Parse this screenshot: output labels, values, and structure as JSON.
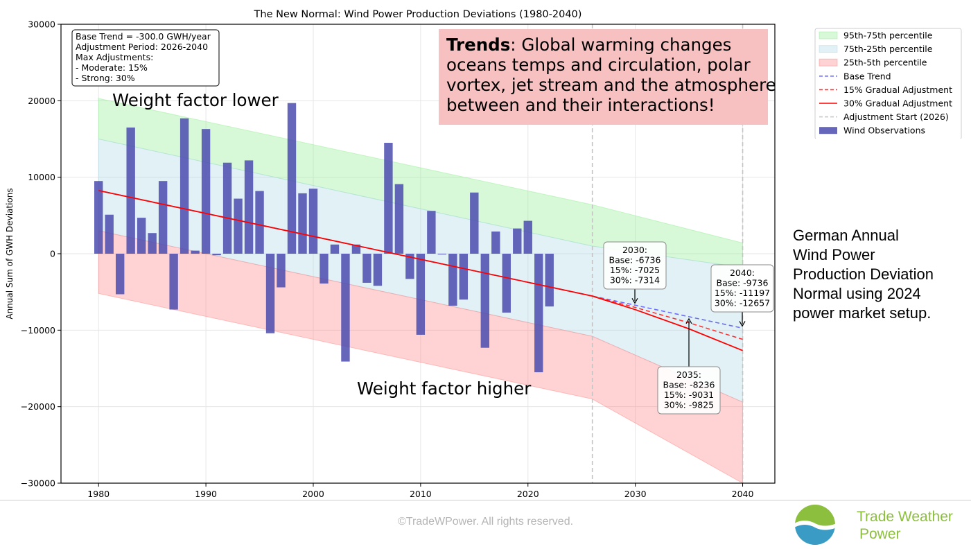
{
  "chart_data": {
    "type": "bar",
    "title": "The New Normal: Wind Power Production Deviations (1980-2040)",
    "xlabel": "",
    "ylabel": "Annual Sum of GWH Deviations",
    "xlim": [
      1976.5,
      2043
    ],
    "ylim": [
      -30000,
      30000
    ],
    "x_ticks": [
      1980,
      1990,
      2000,
      2010,
      2020,
      2030,
      2040
    ],
    "y_ticks": [
      -30000,
      -20000,
      -10000,
      0,
      10000,
      20000,
      30000
    ],
    "x_tick_labels": [
      "1980",
      "1990",
      "2000",
      "2010",
      "2020",
      "2030",
      "2040"
    ],
    "y_tick_labels": [
      "−30000",
      "−20000",
      "−10000",
      "0",
      "10000",
      "20000",
      "30000"
    ],
    "grid": true,
    "legend_position": "outside-right",
    "legend": [
      {
        "label": "95th-75th percentile",
        "kind": "fill",
        "color": "#90ee90"
      },
      {
        "label": "75th-25th percentile",
        "kind": "fill",
        "color": "#add8e6"
      },
      {
        "label": "25th-5th percentile",
        "kind": "fill",
        "color": "#ff8080"
      },
      {
        "label": "Base Trend",
        "kind": "dash",
        "color": "#6b6bff"
      },
      {
        "label": "15% Gradual Adjustment",
        "kind": "dash",
        "color": "#ff3030"
      },
      {
        "label": "30% Gradual Adjustment",
        "kind": "line",
        "color": "#ff0000"
      },
      {
        "label": "Adjustment Start (2026)",
        "kind": "dash",
        "color": "#c8c8c8"
      },
      {
        "label": "Wind Observations",
        "kind": "bar",
        "color": "#4b4baf"
      }
    ],
    "bar_series": {
      "name": "Wind Observations",
      "x": [
        1980,
        1981,
        1982,
        1983,
        1984,
        1985,
        1986,
        1987,
        1988,
        1989,
        1990,
        1991,
        1992,
        1993,
        1994,
        1995,
        1996,
        1997,
        1998,
        1999,
        2000,
        2001,
        2002,
        2003,
        2004,
        2005,
        2006,
        2007,
        2008,
        2009,
        2010,
        2011,
        2012,
        2013,
        2014,
        2015,
        2016,
        2017,
        2018,
        2019,
        2020,
        2021,
        2022
      ],
      "values": [
        9500,
        5100,
        -5300,
        16500,
        4700,
        2700,
        9500,
        -7300,
        17700,
        400,
        16300,
        -200,
        11900,
        7200,
        12200,
        8200,
        -10400,
        -4400,
        19700,
        7900,
        8500,
        -3900,
        1200,
        -14100,
        1200,
        -3800,
        -4200,
        14500,
        9100,
        -3300,
        -10600,
        5600,
        -100,
        -6800,
        -6000,
        8000,
        -12300,
        2900,
        -7700,
        3300,
        4300,
        -15500,
        -6900
      ]
    },
    "lines": [
      {
        "name": "Base Trend",
        "x": [
          1980,
          2026,
          2030,
          2035,
          2040
        ],
        "y": [
          8264,
          -5536,
          -6736,
          -8236,
          -9736
        ]
      },
      {
        "name": "15% Gradual Adjustment",
        "x": [
          2026,
          2030,
          2035,
          2040
        ],
        "y": [
          -5536,
          -7025,
          -9031,
          -11197
        ]
      },
      {
        "name": "30% Gradual Adjustment",
        "x": [
          1980,
          2026,
          2030,
          2035,
          2040
        ],
        "y": [
          8264,
          -5536,
          -7314,
          -9825,
          -12657
        ]
      }
    ],
    "percentile_bands": {
      "x": [
        1980,
        2026,
        2040
      ],
      "p95": [
        20300,
        6400,
        1400
      ],
      "p75": [
        15000,
        1000,
        -1800
      ],
      "p25": [
        3000,
        -10800,
        -19400
      ],
      "p5": [
        -5200,
        -19000,
        -30000
      ]
    },
    "vlines": [
      2026,
      2040
    ],
    "info_box": [
      "Base Trend = -300.0 GWH/year",
      "Adjustment Period: 2026-2040",
      "Max Adjustments:",
      "- Moderate: 15%",
      "- Strong: 30%"
    ],
    "trends_box": {
      "bold": "Trends",
      "lines": [
        ": Global warming changes",
        "oceans temps and circulation, polar",
        "vortex, jet stream and the atmosphere",
        "between and their interactions!"
      ]
    },
    "annotations": [
      {
        "year": 2030,
        "lines": [
          "2030:",
          "Base: -6736",
          "15%: -7025",
          "30%: -7314"
        ]
      },
      {
        "year": 2035,
        "lines": [
          "2035:",
          "Base: -8236",
          "15%: -9031",
          "30%: -9825"
        ]
      },
      {
        "year": 2040,
        "lines": [
          "2040:",
          "Base: -9736",
          "15%: -11197",
          "30%: -12657"
        ]
      }
    ],
    "weight_labels": {
      "upper": "Weight factor lower",
      "lower": "Weight factor higher"
    }
  },
  "side_note": [
    "German Annual",
    "Wind Power",
    "Production Deviation",
    "Normal using 2024",
    "power market setup."
  ],
  "footer": {
    "copyright": "©TradeWPower. All rights reserved.",
    "brand_line1": "Trade Weather",
    "brand_line2": "Power"
  }
}
